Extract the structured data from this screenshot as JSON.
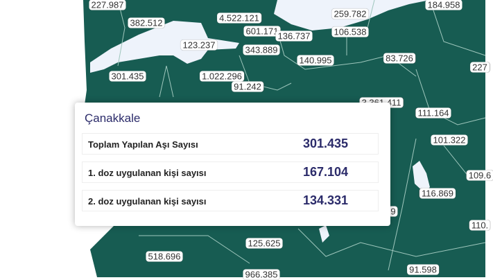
{
  "map": {
    "colors": {
      "land": "#175c52",
      "sea": "#eef3fb",
      "border": "#9fc7bd"
    },
    "labels": [
      "227.987",
      "382.512",
      "4.522.121",
      "259.782",
      "184.958",
      "601.171",
      "136.737",
      "106.538",
      "123.237",
      "343.889",
      "140.995",
      "83.726",
      "227",
      "301.435",
      "1.022.296",
      "91.242",
      "3.361.411",
      "111.164",
      "101.322",
      "109.6",
      "116.869",
      "9",
      "110.",
      "125.625",
      "518.696",
      "966.385",
      "91.598"
    ]
  },
  "tooltip": {
    "province": "Çanakkale",
    "rows": [
      {
        "label": "Toplam Yapılan Aşı Sayısı",
        "value": "301.435"
      },
      {
        "label": "1. doz uygulanan kişi sayısı",
        "value": "167.104"
      },
      {
        "label": "2. doz uygulanan kişi sayısı",
        "value": "134.331"
      }
    ]
  }
}
